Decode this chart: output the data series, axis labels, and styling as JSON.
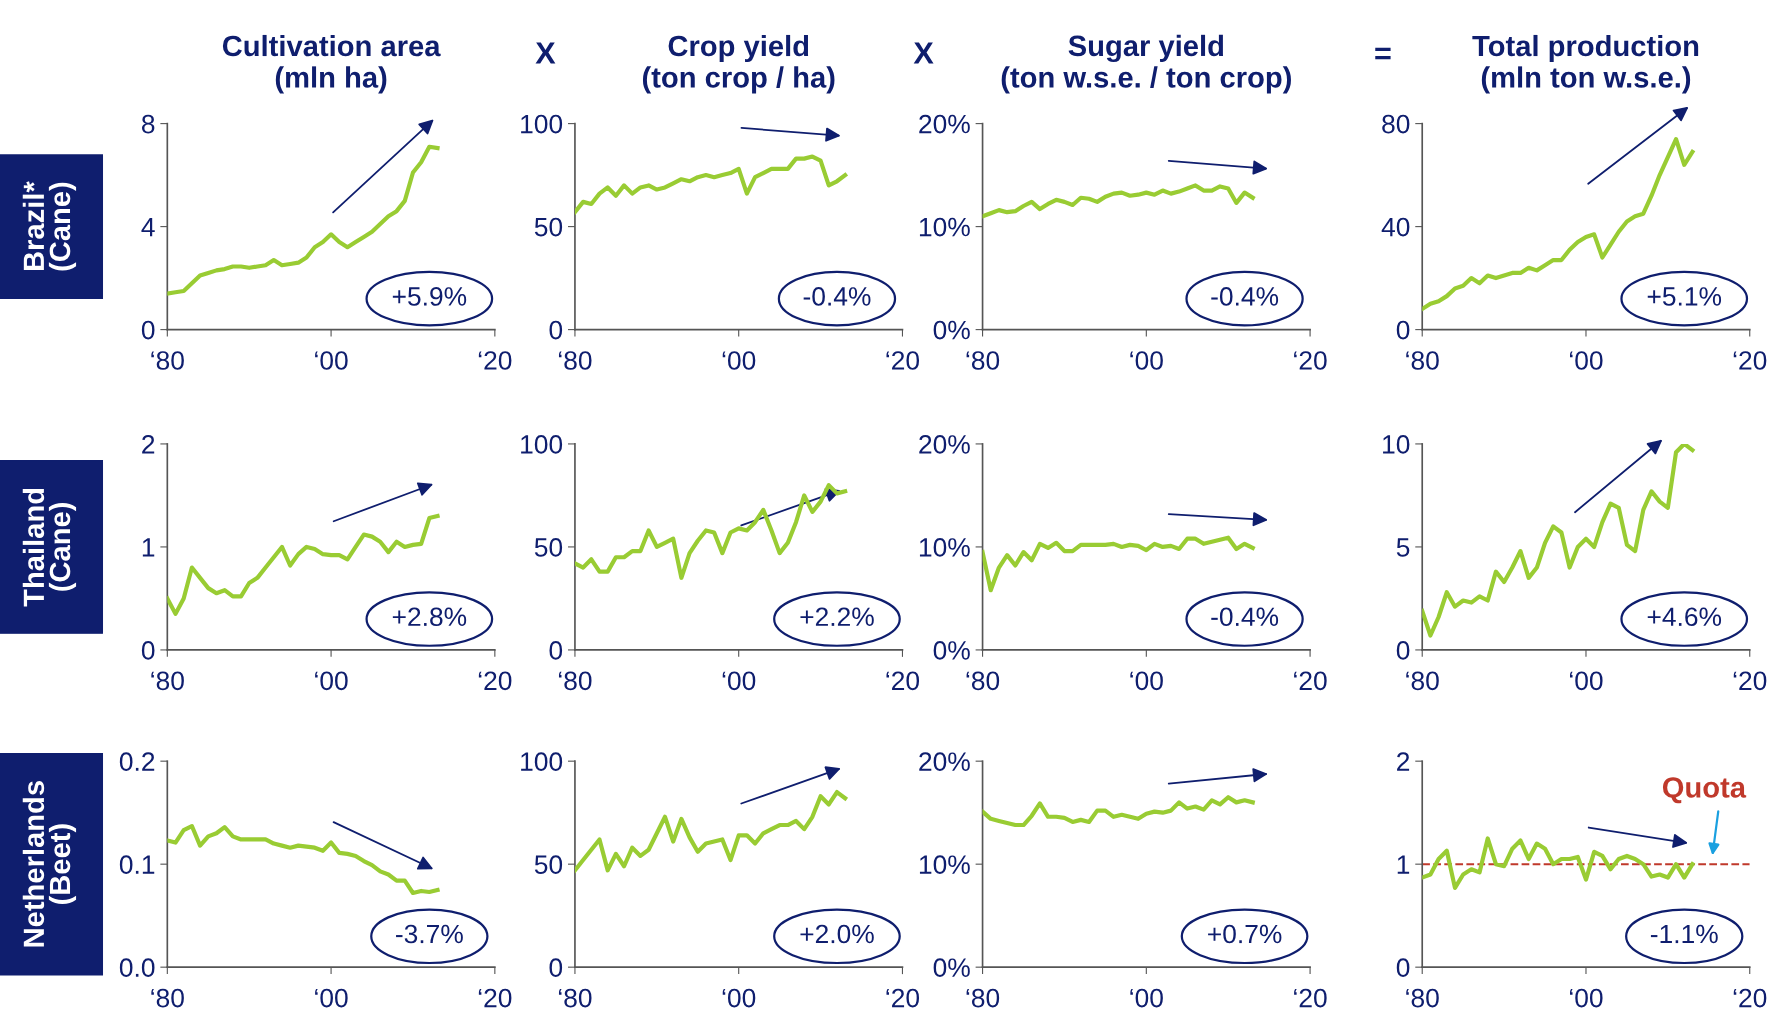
{
  "chart_data": [
    {
      "type": "line",
      "title": "Cultivation area\n(mln ha)",
      "ylabel": "Brazil*\n(Cane)",
      "color": "#99cc33",
      "categories": [
        "‘80",
        null,
        null,
        null,
        null,
        null,
        null,
        null,
        null,
        null,
        null,
        null,
        null,
        null,
        null,
        null,
        null,
        null,
        null,
        null,
        "‘00",
        null,
        null,
        null,
        null,
        null,
        null,
        null,
        null,
        null,
        null,
        null,
        null,
        null,
        null,
        null,
        null,
        null,
        null,
        null,
        "‘20"
      ],
      "values": [
        1.4,
        1.45,
        1.5,
        1.8,
        2.1,
        2.2,
        2.3,
        2.35,
        2.45,
        2.45,
        2.4,
        2.45,
        2.5,
        2.7,
        2.5,
        2.55,
        2.6,
        2.8,
        3.2,
        3.4,
        3.7,
        3.4,
        3.2,
        3.4,
        3.6,
        3.8,
        4.1,
        4.4,
        4.6,
        5.0,
        6.1,
        6.5,
        7.1,
        7.05,
        null,
        null,
        null,
        null,
        null,
        null,
        null
      ],
      "ylim": [
        0,
        8
      ],
      "yticks": [
        0,
        4,
        8
      ],
      "annotations": [
        "+5.9%"
      ]
    },
    {
      "type": "line",
      "title": "Crop yield\n(ton crop / ha)",
      "color": "#99cc33",
      "categories": [
        "‘80",
        null,
        null,
        null,
        null,
        null,
        null,
        null,
        null,
        null,
        null,
        null,
        null,
        null,
        null,
        null,
        null,
        null,
        null,
        null,
        "‘00",
        null,
        null,
        null,
        null,
        null,
        null,
        null,
        null,
        null,
        null,
        null,
        null,
        null,
        null,
        null,
        null,
        null,
        null,
        null,
        "‘20"
      ],
      "values": [
        57,
        62,
        61,
        66,
        69,
        65,
        70,
        66,
        69,
        70,
        68,
        69,
        71,
        73,
        72,
        74,
        75,
        74,
        75,
        76,
        78,
        66,
        74,
        76,
        78,
        78,
        78,
        83,
        83,
        84,
        82,
        70,
        72,
        75,
        null,
        null,
        null,
        null,
        null,
        null,
        null
      ],
      "ylim": [
        0,
        100
      ],
      "yticks": [
        0,
        50,
        100
      ],
      "annotations": [
        "-0.4%",
        "X"
      ]
    },
    {
      "type": "line",
      "title": "Sugar yield\n(ton w.s.e. / ton crop)",
      "color": "#99cc33",
      "categories": [
        "‘80",
        null,
        null,
        null,
        null,
        null,
        null,
        null,
        null,
        null,
        null,
        null,
        null,
        null,
        null,
        null,
        null,
        null,
        null,
        null,
        "‘00",
        null,
        null,
        null,
        null,
        null,
        null,
        null,
        null,
        null,
        null,
        null,
        null,
        null,
        null,
        null,
        null,
        null,
        null,
        null,
        "‘20"
      ],
      "values": [
        11.0,
        11.3,
        11.6,
        11.4,
        11.5,
        12.0,
        12.4,
        11.7,
        12.2,
        12.6,
        12.4,
        12.1,
        12.8,
        12.7,
        12.4,
        12.9,
        13.2,
        13.3,
        13.0,
        13.1,
        13.3,
        13.1,
        13.5,
        13.2,
        13.4,
        13.7,
        14.0,
        13.5,
        13.5,
        13.9,
        13.7,
        12.3,
        13.3,
        12.8,
        null,
        null,
        null,
        null,
        null,
        null,
        null
      ],
      "ylim": [
        0,
        20
      ],
      "yticks": [
        {
          "value": 0,
          "label": "0%"
        },
        {
          "value": 10,
          "label": "10%"
        },
        {
          "value": 20,
          "label": "20%"
        }
      ],
      "annotations": [
        "-0.4%",
        "X"
      ]
    },
    {
      "type": "line",
      "title": "Total production\n(mln ton w.s.e.)",
      "color": "#99cc33",
      "categories": [
        "‘80",
        null,
        null,
        null,
        null,
        null,
        null,
        null,
        null,
        null,
        null,
        null,
        null,
        null,
        null,
        null,
        null,
        null,
        null,
        null,
        "‘00",
        null,
        null,
        null,
        null,
        null,
        null,
        null,
        null,
        null,
        null,
        null,
        null,
        null,
        null,
        null,
        null,
        null,
        null,
        null,
        "‘20"
      ],
      "values": [
        8,
        10,
        11,
        13,
        16,
        17,
        20,
        18,
        21,
        20,
        21,
        22,
        22,
        24,
        23,
        25,
        27,
        27,
        31,
        34,
        36,
        37,
        28,
        33,
        38,
        42,
        44,
        45,
        52,
        60,
        67,
        74,
        64,
        69,
        null,
        null,
        null,
        null,
        null,
        null,
        null
      ],
      "ylim": [
        0,
        80
      ],
      "yticks": [
        0,
        40,
        80
      ],
      "annotations": [
        "+5.1%",
        "="
      ]
    },
    {
      "type": "line",
      "ylabel": "Thailand\n(Cane)",
      "color": "#99cc33",
      "categories": [
        "‘80",
        null,
        null,
        null,
        null,
        null,
        null,
        null,
        null,
        null,
        null,
        null,
        null,
        null,
        null,
        null,
        null,
        null,
        null,
        null,
        "‘00",
        null,
        null,
        null,
        null,
        null,
        null,
        null,
        null,
        null,
        null,
        null,
        null,
        null,
        null,
        null,
        null,
        null,
        null,
        null,
        "‘20"
      ],
      "values": [
        0.5,
        0.35,
        0.5,
        0.8,
        0.7,
        0.6,
        0.55,
        0.58,
        0.52,
        0.52,
        0.65,
        0.7,
        0.8,
        0.9,
        1.0,
        0.82,
        0.93,
        1.0,
        0.98,
        0.93,
        0.92,
        0.92,
        0.88,
        1.0,
        1.12,
        1.1,
        1.05,
        0.95,
        1.05,
        1.0,
        1.02,
        1.03,
        1.28,
        1.3,
        null,
        null,
        null,
        null,
        null,
        null,
        null
      ],
      "ylim": [
        0,
        2
      ],
      "yticks": [
        0,
        1,
        2
      ],
      "annotations": [
        "+2.8%"
      ]
    },
    {
      "type": "line",
      "color": "#99cc33",
      "categories": [
        "‘80",
        null,
        null,
        null,
        null,
        null,
        null,
        null,
        null,
        null,
        null,
        null,
        null,
        null,
        null,
        null,
        null,
        null,
        null,
        null,
        "‘00",
        null,
        null,
        null,
        null,
        null,
        null,
        null,
        null,
        null,
        null,
        null,
        null,
        null,
        null,
        null,
        null,
        null,
        null,
        null,
        "‘20"
      ],
      "values": [
        42,
        40,
        44,
        38,
        38,
        45,
        45,
        48,
        48,
        58,
        50,
        52,
        54,
        35,
        47,
        53,
        58,
        57,
        47,
        57,
        59,
        58,
        62,
        68,
        58,
        47,
        52,
        62,
        75,
        67,
        72,
        80,
        76,
        77,
        null,
        null,
        null,
        null,
        null,
        null,
        null
      ],
      "ylim": [
        0,
        100
      ],
      "yticks": [
        0,
        50,
        100
      ],
      "annotations": [
        "+2.2%"
      ]
    },
    {
      "type": "line",
      "color": "#99cc33",
      "categories": [
        "‘80",
        null,
        null,
        null,
        null,
        null,
        null,
        null,
        null,
        null,
        null,
        null,
        null,
        null,
        null,
        null,
        null,
        null,
        null,
        null,
        "‘00",
        null,
        null,
        null,
        null,
        null,
        null,
        null,
        null,
        null,
        null,
        null,
        null,
        null,
        null,
        null,
        null,
        null,
        null,
        null,
        "‘20"
      ],
      "values": [
        9.5,
        5.8,
        8.0,
        9.2,
        8.2,
        9.5,
        8.7,
        10.3,
        9.9,
        10.4,
        9.6,
        9.6,
        10.2,
        10.2,
        10.2,
        10.2,
        10.3,
        10.0,
        10.2,
        10.1,
        9.7,
        10.3,
        10.0,
        10.1,
        9.8,
        10.8,
        10.8,
        10.3,
        10.5,
        10.7,
        10.9,
        9.8,
        10.3,
        9.9,
        null,
        null,
        null,
        null,
        null,
        null,
        null
      ],
      "ylim": [
        0,
        20
      ],
      "yticks": [
        {
          "value": 0,
          "label": "0%"
        },
        {
          "value": 10,
          "label": "10%"
        },
        {
          "value": 20,
          "label": "20%"
        }
      ],
      "annotations": [
        "-0.4%"
      ]
    },
    {
      "type": "line",
      "color": "#99cc33",
      "categories": [
        "‘80",
        null,
        null,
        null,
        null,
        null,
        null,
        null,
        null,
        null,
        null,
        null,
        null,
        null,
        null,
        null,
        null,
        null,
        null,
        null,
        "‘00",
        null,
        null,
        null,
        null,
        null,
        null,
        null,
        null,
        null,
        null,
        null,
        null,
        null,
        null,
        null,
        null,
        null,
        null,
        null,
        "‘20"
      ],
      "values": [
        1.9,
        0.7,
        1.6,
        2.8,
        2.1,
        2.4,
        2.3,
        2.6,
        2.4,
        3.8,
        3.3,
        4.0,
        4.8,
        3.5,
        4.0,
        5.2,
        6.0,
        5.7,
        4.0,
        5.0,
        5.4,
        5.0,
        6.2,
        7.1,
        6.9,
        5.1,
        4.8,
        6.8,
        7.7,
        7.2,
        6.9,
        9.6,
        10.0,
        9.7,
        null,
        null,
        null,
        null,
        null,
        null,
        null
      ],
      "ylim": [
        0,
        10
      ],
      "yticks": [
        0,
        5,
        10
      ],
      "annotations": [
        "+4.6%"
      ]
    },
    {
      "type": "line",
      "ylabel": "Netherlands\n(Beet)",
      "color": "#99cc33",
      "categories": [
        "‘80",
        null,
        null,
        null,
        null,
        null,
        null,
        null,
        null,
        null,
        null,
        null,
        null,
        null,
        null,
        null,
        null,
        null,
        null,
        null,
        "‘00",
        null,
        null,
        null,
        null,
        null,
        null,
        null,
        null,
        null,
        null,
        null,
        null,
        null,
        null,
        null,
        null,
        null,
        null,
        null,
        "‘20"
      ],
      "values": [
        0.123,
        0.121,
        0.133,
        0.137,
        0.118,
        0.127,
        0.13,
        0.136,
        0.127,
        0.124,
        0.124,
        0.124,
        0.124,
        0.12,
        0.118,
        0.116,
        0.118,
        0.117,
        0.116,
        0.113,
        0.121,
        0.111,
        0.11,
        0.108,
        0.103,
        0.099,
        0.093,
        0.09,
        0.084,
        0.084,
        0.072,
        0.074,
        0.073,
        0.075,
        null,
        null,
        null,
        null,
        null,
        null,
        null
      ],
      "ylim": [
        0,
        0.2
      ],
      "yticks": [
        {
          "value": 0,
          "label": "0.0"
        },
        0.1,
        0.2
      ],
      "annotations": [
        "-3.7%"
      ]
    },
    {
      "type": "line",
      "color": "#99cc33",
      "categories": [
        "‘80",
        null,
        null,
        null,
        null,
        null,
        null,
        null,
        null,
        null,
        null,
        null,
        null,
        null,
        null,
        null,
        null,
        null,
        null,
        null,
        "‘00",
        null,
        null,
        null,
        null,
        null,
        null,
        null,
        null,
        null,
        null,
        null,
        null,
        null,
        null,
        null,
        null,
        null,
        null,
        null,
        "‘20"
      ],
      "values": [
        47,
        52,
        57,
        62,
        47,
        55,
        49,
        58,
        54,
        57,
        65,
        73,
        61,
        72,
        63,
        56,
        60,
        61,
        62,
        52,
        64,
        64,
        60,
        65,
        67,
        69,
        69,
        71,
        67,
        73,
        83,
        79,
        85,
        82,
        null,
        null,
        null,
        null,
        null,
        null,
        null
      ],
      "ylim": [
        0,
        100
      ],
      "yticks": [
        0,
        50,
        100
      ],
      "annotations": [
        "+2.0%"
      ]
    },
    {
      "type": "line",
      "color": "#99cc33",
      "categories": [
        "‘80",
        null,
        null,
        null,
        null,
        null,
        null,
        null,
        null,
        null,
        null,
        null,
        null,
        null,
        null,
        null,
        null,
        null,
        null,
        null,
        "‘00",
        null,
        null,
        null,
        null,
        null,
        null,
        null,
        null,
        null,
        null,
        null,
        null,
        null,
        null,
        null,
        null,
        null,
        null,
        null,
        "‘20"
      ],
      "values": [
        15.1,
        14.4,
        14.2,
        14.0,
        13.8,
        13.8,
        14.7,
        15.9,
        14.6,
        14.6,
        14.5,
        14.1,
        14.3,
        14.1,
        15.2,
        15.2,
        14.6,
        14.8,
        14.6,
        14.4,
        14.9,
        15.1,
        15.0,
        15.2,
        16.0,
        15.4,
        15.6,
        15.3,
        16.2,
        15.8,
        16.5,
        16.0,
        16.2,
        16.0,
        null,
        null,
        null,
        null,
        null,
        null,
        null
      ],
      "ylim": [
        0,
        20
      ],
      "yticks": [
        {
          "value": 0,
          "label": "0%"
        },
        {
          "value": 10,
          "label": "10%"
        },
        {
          "value": 20,
          "label": "20%"
        }
      ],
      "annotations": [
        "+0.7%"
      ]
    },
    {
      "type": "line",
      "color": "#99cc33",
      "categories": [
        "‘80",
        null,
        null,
        null,
        null,
        null,
        null,
        null,
        null,
        null,
        null,
        null,
        null,
        null,
        null,
        null,
        null,
        null,
        null,
        null,
        "‘00",
        null,
        null,
        null,
        null,
        null,
        null,
        null,
        null,
        null,
        null,
        null,
        null,
        null,
        null,
        null,
        null,
        null,
        null,
        null,
        "‘20"
      ],
      "values": [
        0.87,
        0.9,
        1.05,
        1.13,
        0.77,
        0.9,
        0.95,
        0.92,
        1.25,
        1.0,
        0.98,
        1.15,
        1.23,
        1.05,
        1.2,
        1.15,
        1.0,
        1.05,
        1.05,
        1.07,
        0.85,
        1.12,
        1.08,
        0.95,
        1.05,
        1.08,
        1.05,
        1.0,
        0.88,
        0.9,
        0.87,
        1.0,
        0.87,
        1.0,
        null,
        null,
        null,
        null,
        null,
        null,
        null
      ],
      "ylim": [
        0,
        2
      ],
      "yticks": [
        0,
        1,
        2
      ],
      "annotations": [
        "-1.1%"
      ],
      "ref_lines": [
        {
          "axis": "y",
          "value": 1,
          "label": "Quota",
          "color": "#c0392b",
          "line_style": "dashed"
        }
      ]
    }
  ]
}
